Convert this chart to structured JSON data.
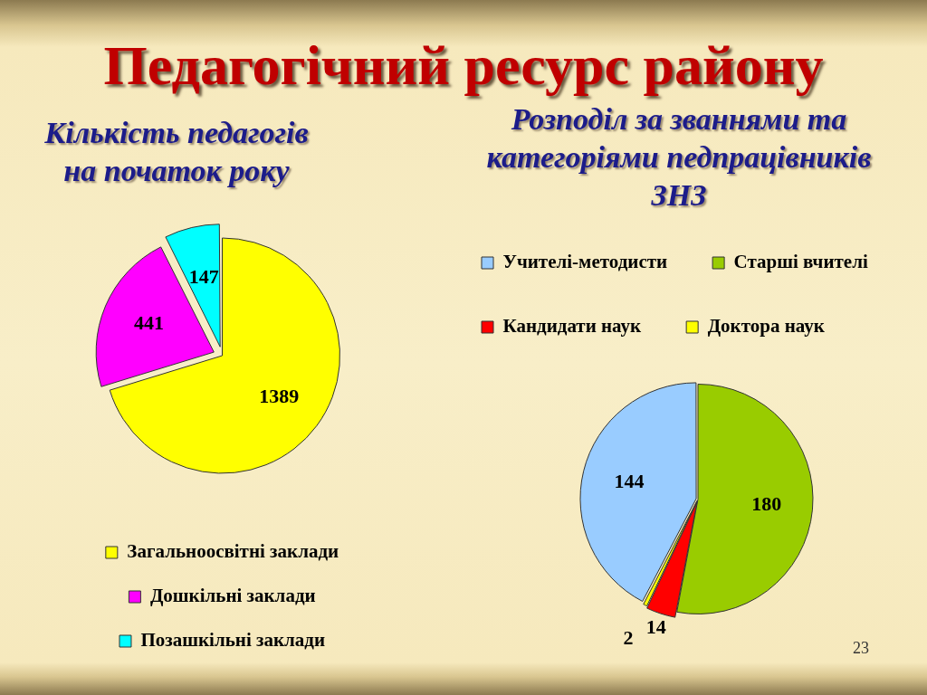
{
  "chart_data": [
    {
      "type": "pie",
      "title": "Педагогічний ресурс району",
      "subtitle": "Кількість педагогів на початок року",
      "categories": [
        "Загальноосвітні заклади",
        "Дошкільні заклади",
        "Позашкільні заклади"
      ],
      "values": [
        1389,
        441,
        147
      ],
      "colors": [
        "#ffff00",
        "#ff00ff",
        "#00ffff"
      ],
      "data_labels": true,
      "legend": "bottom"
    },
    {
      "type": "pie",
      "title": "Розподіл за званнями та категоріями педпрацівників ЗНЗ",
      "categories": [
        "Учителі-методисти",
        "Старші вчителі",
        "Кандидати наук",
        "Доктора наук"
      ],
      "values": [
        144,
        180,
        14,
        2
      ],
      "colors": [
        "#99ccff",
        "#99cc00",
        "#ff0000",
        "#ffff00"
      ],
      "data_labels": true,
      "legend": "top",
      "annotations": [
        "23"
      ]
    }
  ]
}
